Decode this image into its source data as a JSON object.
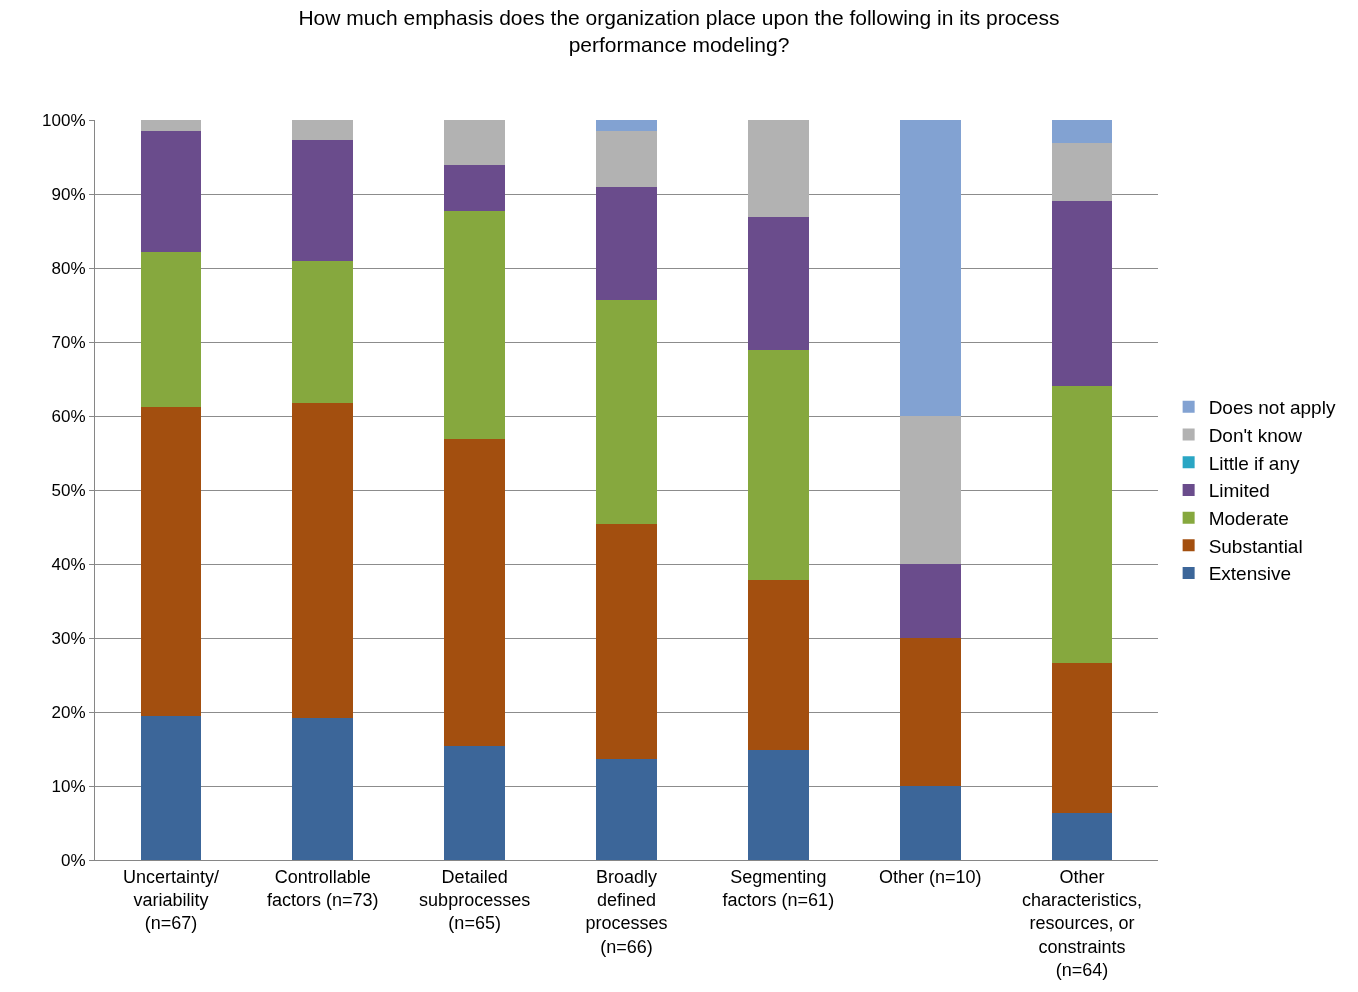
{
  "chart_data": {
    "type": "bar",
    "stacked": true,
    "title": "How much emphasis does the organization place upon the following in its process performance modeling?",
    "categories": [
      "Uncertainty/ variability (n=67)",
      "Controllable factors (n=73)",
      "Detailed subprocesses (n=65)",
      "Broadly defined processes (n=66)",
      "Segmenting factors (n=61)",
      "Other (n=10)",
      "Other characteristics, resources, or constraints (n=64)"
    ],
    "series": [
      {
        "name": "Extensive",
        "color": "#3c6699",
        "values": [
          19.4,
          19.2,
          15.4,
          13.6,
          14.8,
          10,
          6.3
        ]
      },
      {
        "name": "Substantial",
        "color": "#a34f0f",
        "values": [
          41.8,
          42.5,
          41.5,
          31.8,
          23.0,
          20,
          20.3
        ]
      },
      {
        "name": "Moderate",
        "color": "#86a83e",
        "values": [
          20.9,
          19.2,
          30.8,
          30.3,
          31.1,
          0,
          37.5
        ]
      },
      {
        "name": "Limited",
        "color": "#6a4c8c",
        "values": [
          16.4,
          16.4,
          6.2,
          15.2,
          18.0,
          10,
          25.0
        ]
      },
      {
        "name": "Little if any",
        "color": "#2aa6c4",
        "values": [
          0,
          0,
          0,
          0,
          0,
          0,
          0
        ]
      },
      {
        "name": "Don't know",
        "color": "#b2b2b2",
        "values": [
          1.5,
          2.7,
          6.2,
          7.6,
          13.1,
          20,
          7.8
        ]
      },
      {
        "name": "Does not apply",
        "color": "#82a2d2",
        "values": [
          0,
          0,
          0,
          1.5,
          0,
          40,
          3.1
        ]
      }
    ],
    "ylim": [
      0,
      100
    ],
    "yticks": [
      {
        "value": 0,
        "label": "0%"
      },
      {
        "value": 10,
        "label": "10%"
      },
      {
        "value": 20,
        "label": "20%"
      },
      {
        "value": 30,
        "label": "30%"
      },
      {
        "value": 40,
        "label": "40%"
      },
      {
        "value": 50,
        "label": "50%"
      },
      {
        "value": 60,
        "label": "60%"
      },
      {
        "value": 70,
        "label": "70%"
      },
      {
        "value": 80,
        "label": "80%"
      },
      {
        "value": 90,
        "label": "90%"
      },
      {
        "value": 100,
        "label": "100%"
      }
    ],
    "grid": "y",
    "legend": "right"
  }
}
